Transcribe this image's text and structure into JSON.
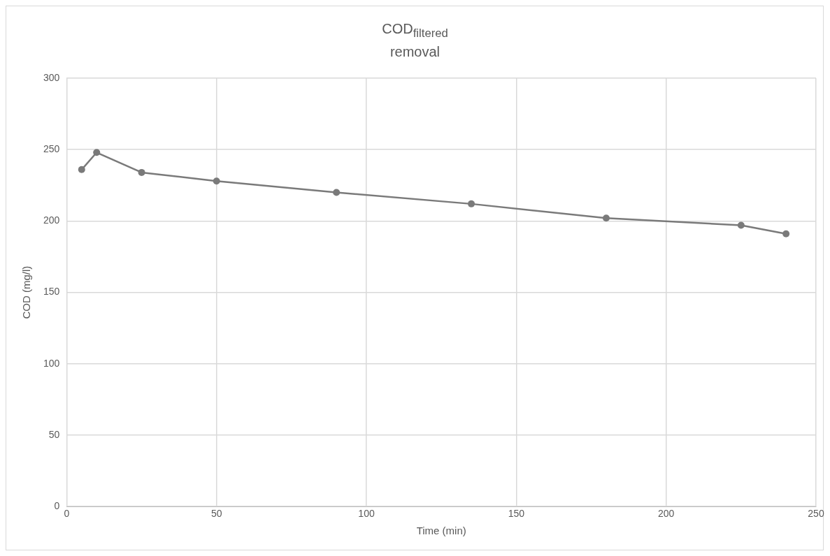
{
  "chart_data": {
    "type": "line",
    "title": "COD$_{filtered}$ removal",
    "xlabel": "Time (min)",
    "ylabel": "COD (mg/l)",
    "x": [
      5,
      10,
      25,
      50,
      90,
      135,
      180,
      225,
      240
    ],
    "series": [
      {
        "color": "#7a7a7a",
        "values": [
          236,
          248,
          234,
          228,
          220,
          212,
          202,
          197,
          191
        ]
      }
    ],
    "xlim": [
      0,
      250
    ],
    "xticks": [
      0,
      50,
      100,
      150,
      200,
      250
    ],
    "ylim": [
      0,
      300
    ],
    "yticks": [
      0,
      50,
      100,
      150,
      200,
      250,
      300
    ],
    "grid": true,
    "legend": false,
    "marker": "circle",
    "line_style": "solid"
  }
}
